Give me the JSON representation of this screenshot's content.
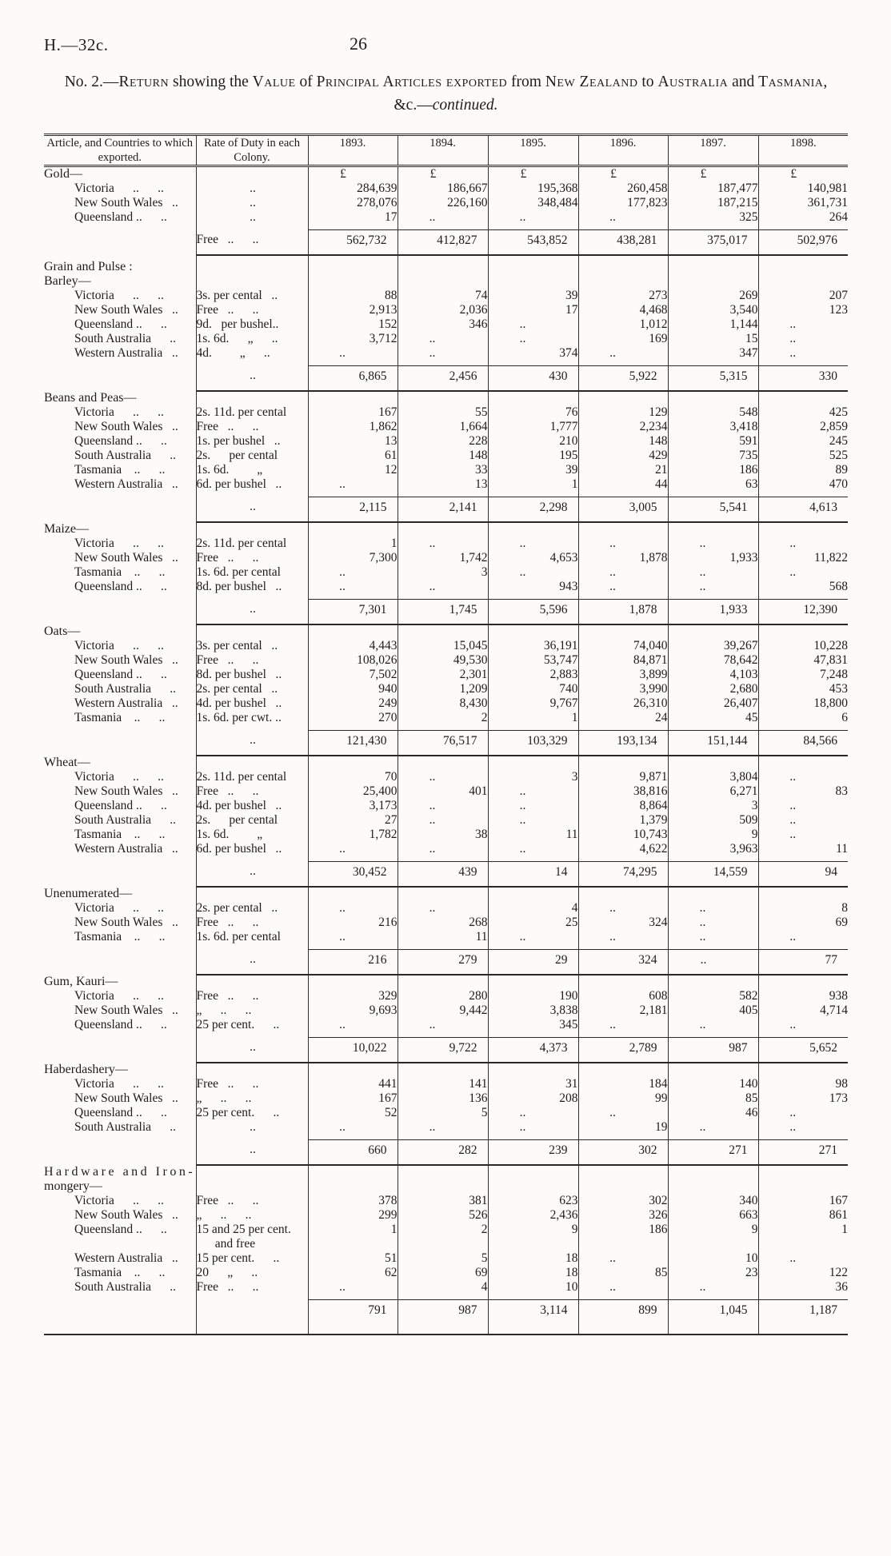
{
  "header": {
    "doc_ref": "H.—32c.",
    "page_number": "26"
  },
  "title": {
    "parts": [
      {
        "text": "No. 2.—"
      },
      {
        "text": "Return"
      },
      {
        "text": " showing the "
      },
      {
        "text": "Value"
      },
      {
        "text": " of "
      },
      {
        "text": "Principal Articles exported"
      },
      {
        "text": " from "
      },
      {
        "text": "New Zealand"
      },
      {
        "text": " to "
      },
      {
        "text": "Australia"
      },
      {
        "text": " and "
      },
      {
        "text": "Tasmania"
      },
      {
        "text": ", &c.—"
      },
      {
        "text": "continued."
      }
    ]
  },
  "table": {
    "headers": {
      "article": "Article, and Countries to which exported.",
      "duty": "Rate of Duty in each Colony.",
      "years": [
        "1893.",
        "1894.",
        "1895.",
        "1896.",
        "1897.",
        "1898."
      ]
    },
    "currency_symbol": "£",
    "blocks": [
      {
        "type": "section",
        "title": "Gold—",
        "indent": 0,
        "currency": true,
        "rows": [
          {
            "article": "Victoria      ..      ..",
            "duty": "..",
            "values": [
              "284,639",
              "186,667",
              "195,368",
              "260,458",
              "187,477",
              "140,981"
            ]
          },
          {
            "article": "New South Wales   ..",
            "duty": "..",
            "values": [
              "278,076",
              "226,160",
              "348,484",
              "177,823",
              "187,215",
              "361,731"
            ]
          },
          {
            "article": "Queensland ..      ..",
            "duty": "..",
            "values": [
              "17",
              "..",
              "..",
              "..",
              "325",
              "264"
            ]
          }
        ],
        "total": {
          "duty": "Free   ..      ..",
          "values": [
            "562,732",
            "412,827",
            "543,852",
            "438,281",
            "375,017",
            "502,976"
          ]
        }
      },
      {
        "type": "label",
        "text": "Grain and Pulse :",
        "indent": 0
      },
      {
        "type": "section",
        "title": "Barley—",
        "indent": 1,
        "rows": [
          {
            "article": "Victoria      ..      ..",
            "duty": "3s. per cental   ..",
            "values": [
              "88",
              "74",
              "39",
              "273",
              "269",
              "207"
            ]
          },
          {
            "article": "New South Wales   ..",
            "duty": "Free   ..      ..",
            "values": [
              "2,913",
              "2,036",
              "17",
              "4,468",
              "3,540",
              "123"
            ]
          },
          {
            "article": "Queensland ..      ..",
            "duty": "9d.   per bushel..",
            "values": [
              "152",
              "346",
              "..",
              "1,012",
              "1,144",
              ".."
            ]
          },
          {
            "article": "South Australia      ..",
            "duty": "1s. 6d.      „      ..",
            "values": [
              "3,712",
              "..",
              "..",
              "169",
              "15",
              ".."
            ]
          },
          {
            "article": "Western Australia   ..",
            "duty": "4d.         „      ..",
            "values": [
              "..",
              "..",
              "374",
              "..",
              "347",
              ".."
            ]
          }
        ],
        "total": {
          "duty": "..",
          "values": [
            "6,865",
            "2,456",
            "430",
            "5,922",
            "5,315",
            "330"
          ]
        }
      },
      {
        "type": "section",
        "title": "Beans and Peas—",
        "indent": 1,
        "rows": [
          {
            "article": "Victoria      ..      ..",
            "duty": "2s. 11d. per cental",
            "values": [
              "167",
              "55",
              "76",
              "129",
              "548",
              "425"
            ]
          },
          {
            "article": "New South Wales   ..",
            "duty": "Free   ..      ..",
            "values": [
              "1,862",
              "1,664",
              "1,777",
              "2,234",
              "3,418",
              "2,859"
            ]
          },
          {
            "article": "Queensland ..      ..",
            "duty": "1s. per bushel   ..",
            "values": [
              "13",
              "228",
              "210",
              "148",
              "591",
              "245"
            ]
          },
          {
            "article": "South Australia      ..",
            "duty": "2s.      per cental",
            "values": [
              "61",
              "148",
              "195",
              "429",
              "735",
              "525"
            ]
          },
          {
            "article": "Tasmania    ..      ..",
            "duty": "1s. 6d.         „",
            "values": [
              "12",
              "33",
              "39",
              "21",
              "186",
              "89"
            ]
          },
          {
            "article": "Western Australia   ..",
            "duty": "6d. per bushel   ..",
            "values": [
              "..",
              "13",
              "1",
              "44",
              "63",
              "470"
            ]
          }
        ],
        "total": {
          "duty": "..",
          "values": [
            "2,115",
            "2,141",
            "2,298",
            "3,005",
            "5,541",
            "4,613"
          ]
        }
      },
      {
        "type": "section",
        "title": "Maize—",
        "indent": 1,
        "rows": [
          {
            "article": "Victoria      ..      ..",
            "duty": "2s. 11d. per cental",
            "values": [
              "1",
              "..",
              "..",
              "..",
              "..",
              ".."
            ]
          },
          {
            "article": "New South Wales   ..",
            "duty": "Free   ..      ..",
            "values": [
              "7,300",
              "1,742",
              "4,653",
              "1,878",
              "1,933",
              "11,822"
            ]
          },
          {
            "article": "Tasmania    ..      ..",
            "duty": "1s. 6d. per cental",
            "values": [
              "..",
              "3",
              "..",
              "..",
              "..",
              ".."
            ]
          },
          {
            "article": "Queensland ..      ..",
            "duty": "8d. per bushel   ..",
            "values": [
              "..",
              "..",
              "943",
              "..",
              "..",
              "568"
            ]
          }
        ],
        "total": {
          "duty": "..",
          "values": [
            "7,301",
            "1,745",
            "5,596",
            "1,878",
            "1,933",
            "12,390"
          ]
        }
      },
      {
        "type": "section",
        "title": "Oats—",
        "indent": 1,
        "rows": [
          {
            "article": "Victoria      ..      ..",
            "duty": "3s. per cental   ..",
            "values": [
              "4,443",
              "15,045",
              "36,191",
              "74,040",
              "39,267",
              "10,228"
            ]
          },
          {
            "article": "New South Wales   ..",
            "duty": "Free   ..      ..",
            "values": [
              "108,026",
              "49,530",
              "53,747",
              "84,871",
              "78,642",
              "47,831"
            ]
          },
          {
            "article": "Queensland ..      ..",
            "duty": "8d. per bushel   ..",
            "values": [
              "7,502",
              "2,301",
              "2,883",
              "3,899",
              "4,103",
              "7,248"
            ]
          },
          {
            "article": "South Australia      ..",
            "duty": "2s. per cental   ..",
            "values": [
              "940",
              "1,209",
              "740",
              "3,990",
              "2,680",
              "453"
            ]
          },
          {
            "article": "Western Australia   ..",
            "duty": "4d. per bushel   ..",
            "values": [
              "249",
              "8,430",
              "9,767",
              "26,310",
              "26,407",
              "18,800"
            ]
          },
          {
            "article": "Tasmania    ..      ..",
            "duty": "1s. 6d. per cwt. ..",
            "values": [
              "270",
              "2",
              "1",
              "24",
              "45",
              "6"
            ]
          }
        ],
        "total": {
          "duty": "..",
          "values": [
            "121,430",
            "76,517",
            "103,329",
            "193,134",
            "151,144",
            "84,566"
          ]
        }
      },
      {
        "type": "section",
        "title": "Wheat—",
        "indent": 1,
        "rows": [
          {
            "article": "Victoria      ..      ..",
            "duty": "2s. 11d. per cental",
            "values": [
              "70",
              "..",
              "3",
              "9,871",
              "3,804",
              ".."
            ]
          },
          {
            "article": "New South Wales   ..",
            "duty": "Free   ..      ..",
            "values": [
              "25,400",
              "401",
              "..",
              "38,816",
              "6,271",
              "83"
            ]
          },
          {
            "article": "Queensland ..      ..",
            "duty": "4d. per bushel   ..",
            "values": [
              "3,173",
              "..",
              "..",
              "8,864",
              "3",
              ".."
            ]
          },
          {
            "article": "South Australia      ..",
            "duty": "2s.      per cental",
            "values": [
              "27",
              "..",
              "..",
              "1,379",
              "509",
              ".."
            ]
          },
          {
            "article": "Tasmania    ..      ..",
            "duty": "1s. 6d.         „",
            "values": [
              "1,782",
              "38",
              "11",
              "10,743",
              "9",
              ".."
            ]
          },
          {
            "article": "Western Australia   ..",
            "duty": "6d. per bushel   ..",
            "values": [
              "..",
              "..",
              "..",
              "4,622",
              "3,963",
              "11"
            ]
          }
        ],
        "total": {
          "duty": "..",
          "values": [
            "30,452",
            "439",
            "14",
            "74,295",
            "14,559",
            "94"
          ]
        }
      },
      {
        "type": "section",
        "title": "Unenumerated—",
        "indent": 1,
        "rows": [
          {
            "article": "Victoria      ..      ..",
            "duty": "2s. per cental   ..",
            "values": [
              "..",
              "..",
              "4",
              "..",
              "..",
              "8"
            ]
          },
          {
            "article": "New South Wales   ..",
            "duty": "Free   ..      ..",
            "values": [
              "216",
              "268",
              "25",
              "324",
              "..",
              "69"
            ]
          },
          {
            "article": "Tasmania    ..      ..",
            "duty": "1s. 6d. per cental",
            "values": [
              "..",
              "11",
              "..",
              "..",
              "..",
              ".."
            ]
          }
        ],
        "total": {
          "duty": "..",
          "values": [
            "216",
            "279",
            "29",
            "324",
            "..",
            "77"
          ]
        }
      },
      {
        "type": "section",
        "title": "Gum, Kauri—",
        "indent": 0,
        "rows": [
          {
            "article": "Victoria      ..      ..",
            "duty": "Free   ..      ..",
            "values": [
              "329",
              "280",
              "190",
              "608",
              "582",
              "938"
            ]
          },
          {
            "article": "New South Wales   ..",
            "duty": "„      ..      ..",
            "values": [
              "9,693",
              "9,442",
              "3,838",
              "2,181",
              "405",
              "4,714"
            ]
          },
          {
            "article": "Queensland ..      ..",
            "duty": "25 per cent.      ..",
            "values": [
              "..",
              "..",
              "345",
              "..",
              "..",
              ".."
            ]
          }
        ],
        "total": {
          "duty": "..",
          "values": [
            "10,022",
            "9,722",
            "4,373",
            "2,789",
            "987",
            "5,652"
          ]
        }
      },
      {
        "type": "section",
        "title": "Haberdashery—",
        "indent": 0,
        "rows": [
          {
            "article": "Victoria      ..      ..",
            "duty": "Free   ..      ..",
            "values": [
              "441",
              "141",
              "31",
              "184",
              "140",
              "98"
            ]
          },
          {
            "article": "New South Wales   ..",
            "duty": "„      ..      ..",
            "values": [
              "167",
              "136",
              "208",
              "99",
              "85",
              "173"
            ]
          },
          {
            "article": "Queensland ..      ..",
            "duty": "25 per cent.      ..",
            "values": [
              "52",
              "5",
              "..",
              "..",
              "46",
              ".."
            ]
          },
          {
            "article": "South Australia      ..",
            "duty": "..",
            "values": [
              "..",
              "..",
              "..",
              "19",
              "..",
              ".."
            ]
          }
        ],
        "total": {
          "duty": "..",
          "values": [
            "660",
            "282",
            "239",
            "302",
            "271",
            "271"
          ]
        }
      },
      {
        "type": "section",
        "title": "Hardware and Iron-",
        "title2": "mongery—",
        "spaced": true,
        "indent": 0,
        "rows": [
          {
            "article": "Victoria      ..      ..",
            "duty": "Free   ..      ..",
            "values": [
              "378",
              "381",
              "623",
              "302",
              "340",
              "167"
            ]
          },
          {
            "article": "New South Wales   ..",
            "duty": "„      ..      ..",
            "values": [
              "299",
              "526",
              "2,436",
              "326",
              "663",
              "861"
            ]
          },
          {
            "article": "Queensland ..      ..",
            "duty": "15 and 25 per cent.\n      and free",
            "values": [
              "1",
              "2",
              "9",
              "186",
              "9",
              "1"
            ]
          },
          {
            "article": "Western Australia   ..",
            "duty": "15 per cent.      ..",
            "values": [
              "51",
              "5",
              "18",
              "..",
              "10",
              ".."
            ]
          },
          {
            "article": "Tasmania    ..      ..",
            "duty": "20      „      ..",
            "values": [
              "62",
              "69",
              "18",
              "85",
              "23",
              "122"
            ]
          },
          {
            "article": "South Australia      ..",
            "duty": "Free   ..      ..",
            "values": [
              "..",
              "4",
              "10",
              "..",
              "..",
              "36"
            ]
          }
        ],
        "total": {
          "duty": "",
          "values": [
            "791",
            "987",
            "3,114",
            "899",
            "1,045",
            "1,187"
          ],
          "last": true
        }
      }
    ]
  }
}
